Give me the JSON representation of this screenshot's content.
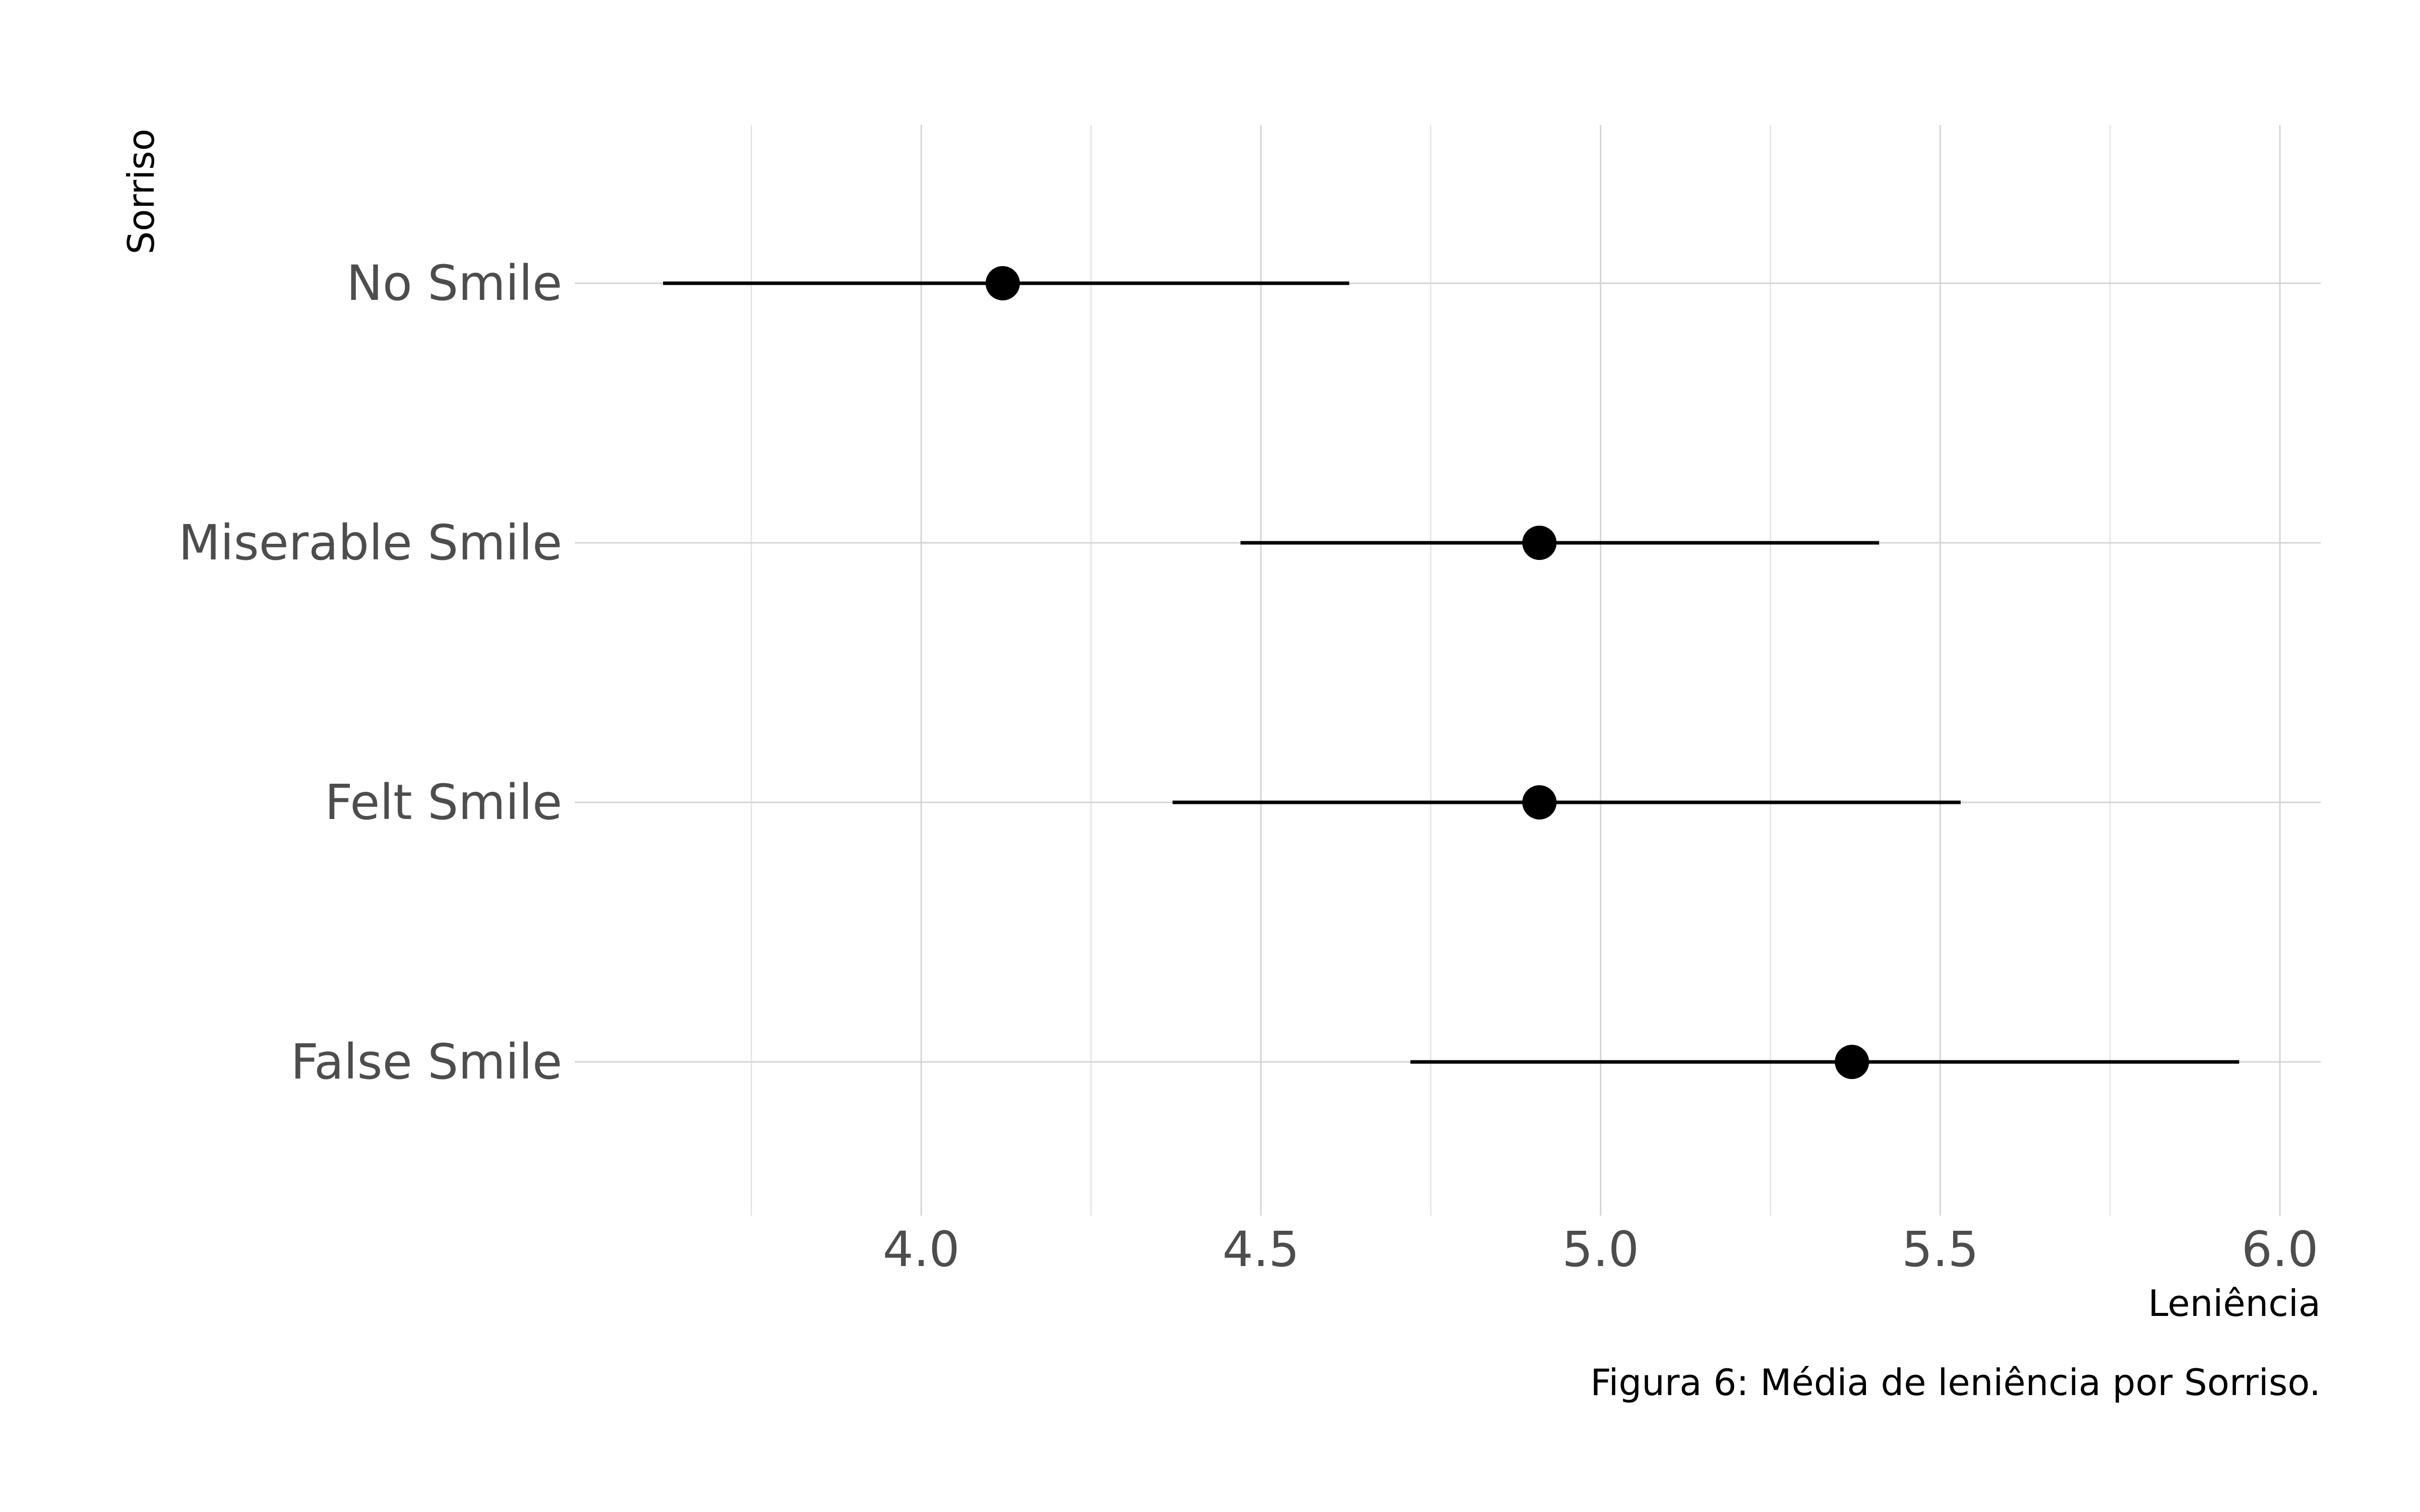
{
  "chart_data": {
    "type": "errorbar",
    "orientation": "horizontal",
    "categories": [
      "No Smile",
      "Miserable Smile",
      "Felt Smile",
      "False Smile"
    ],
    "series": [
      {
        "means": [
          4.12,
          4.91,
          4.91,
          5.37
        ],
        "lower": [
          3.62,
          4.47,
          4.37,
          4.72
        ],
        "upper": [
          4.63,
          5.41,
          5.53,
          5.94
        ]
      }
    ],
    "xlabel": "Leniência",
    "ylabel": "Sorriso",
    "caption": "Figura 6: Média de leniência por Sorriso.",
    "xticks": [
      4.0,
      4.5,
      5.0,
      5.5,
      6.0
    ],
    "xtick_labels": [
      "4.0",
      "4.5",
      "5.0",
      "5.5",
      "6.0"
    ],
    "xminor": [
      3.75,
      4.25,
      4.75,
      5.25,
      5.75
    ],
    "xlim": [
      3.49,
      6.06
    ],
    "grid": true,
    "legend": "none"
  }
}
